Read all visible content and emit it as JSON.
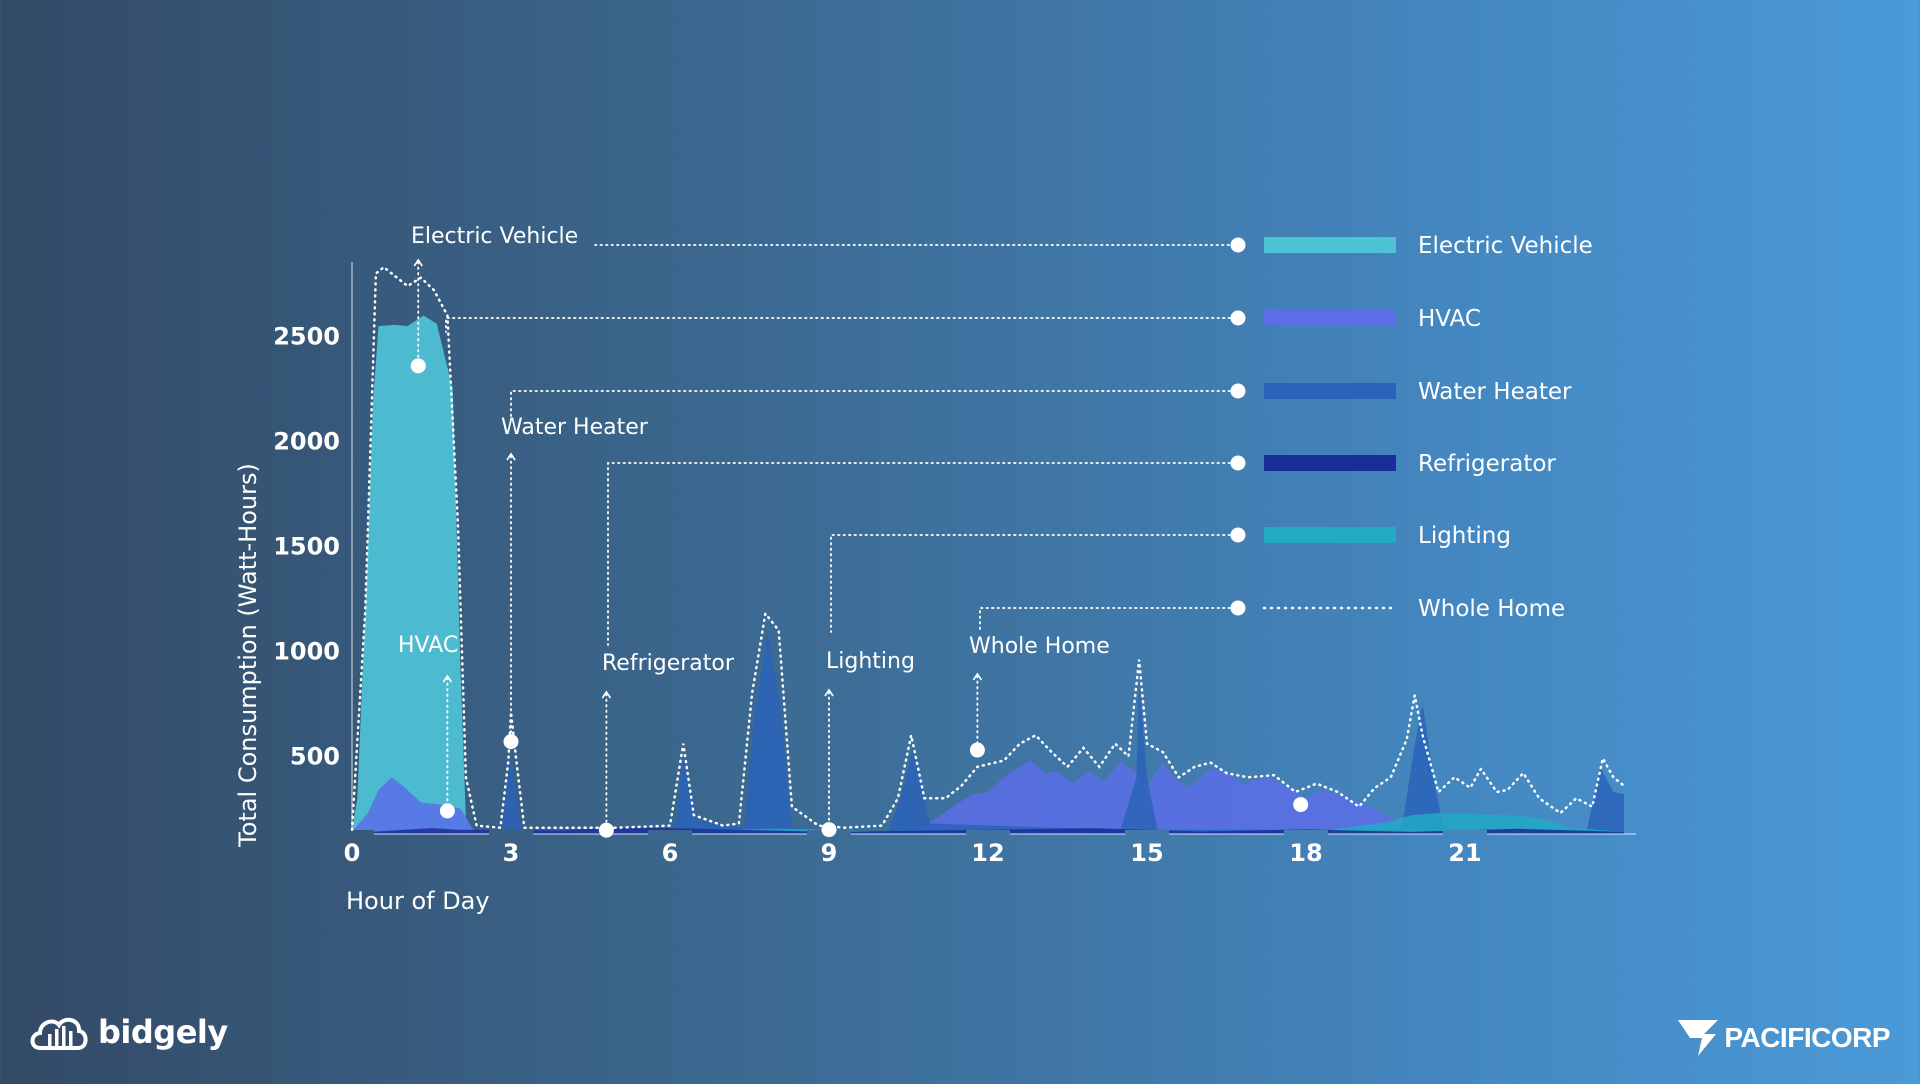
{
  "chart_data": {
    "type": "area",
    "xlabel": "Hour of Day",
    "ylabel": "Total Consumption (Watt-Hours)",
    "xlim": [
      0,
      24
    ],
    "ylim": [
      130,
      2850
    ],
    "x_ticks": [
      0,
      3,
      6,
      9,
      12,
      15,
      18,
      21
    ],
    "y_ticks": [
      500,
      1000,
      1500,
      2000,
      2500
    ],
    "grid": false,
    "legend_position": "right",
    "series": [
      {
        "name": "Electric Vehicle",
        "color": "#4fc3d6",
        "points": [
          [
            0,
            150
          ],
          [
            0.1,
            300
          ],
          [
            0.25,
            1200
          ],
          [
            0.4,
            2200
          ],
          [
            0.5,
            2550
          ],
          [
            0.8,
            2555
          ],
          [
            1.05,
            2550
          ],
          [
            1.35,
            2600
          ],
          [
            1.6,
            2560
          ],
          [
            1.9,
            2250
          ],
          [
            2.05,
            900
          ],
          [
            2.15,
            200
          ],
          [
            2.3,
            140
          ],
          [
            24,
            140
          ]
        ]
      },
      {
        "name": "HVAC",
        "color": "#5b6ee8",
        "points": [
          [
            0,
            140
          ],
          [
            0.3,
            230
          ],
          [
            0.5,
            340
          ],
          [
            0.75,
            400
          ],
          [
            1.0,
            350
          ],
          [
            1.3,
            280
          ],
          [
            1.7,
            270
          ],
          [
            2.05,
            250
          ],
          [
            2.3,
            150
          ],
          [
            10.6,
            140
          ],
          [
            11.0,
            200
          ],
          [
            11.4,
            270
          ],
          [
            11.7,
            320
          ],
          [
            12.0,
            330
          ],
          [
            12.4,
            420
          ],
          [
            12.8,
            480
          ],
          [
            13.1,
            420
          ],
          [
            13.3,
            430
          ],
          [
            13.6,
            370
          ],
          [
            13.9,
            430
          ],
          [
            14.2,
            380
          ],
          [
            14.5,
            480
          ],
          [
            14.8,
            420
          ],
          [
            15.0,
            360
          ],
          [
            15.3,
            470
          ],
          [
            15.5,
            400
          ],
          [
            15.8,
            350
          ],
          [
            16.2,
            440
          ],
          [
            16.5,
            430
          ],
          [
            16.8,
            370
          ],
          [
            17.3,
            400
          ],
          [
            17.8,
            330
          ],
          [
            18.0,
            300
          ],
          [
            18.3,
            340
          ],
          [
            18.8,
            300
          ],
          [
            19.2,
            260
          ],
          [
            19.5,
            220
          ],
          [
            19.8,
            180
          ],
          [
            20.3,
            150
          ],
          [
            24,
            140
          ]
        ]
      },
      {
        "name": "Water Heater",
        "color": "#2a63b8",
        "points": [
          [
            2.8,
            140
          ],
          [
            3.0,
            500
          ],
          [
            3.2,
            140
          ],
          [
            6.1,
            140
          ],
          [
            6.25,
            520
          ],
          [
            6.5,
            200
          ],
          [
            7.4,
            160
          ],
          [
            7.6,
            700
          ],
          [
            7.85,
            1100
          ],
          [
            8.1,
            700
          ],
          [
            8.3,
            160
          ],
          [
            10.1,
            140
          ],
          [
            10.35,
            300
          ],
          [
            10.6,
            560
          ],
          [
            10.9,
            180
          ],
          [
            14.5,
            150
          ],
          [
            14.8,
            400
          ],
          [
            14.85,
            850
          ],
          [
            15.0,
            400
          ],
          [
            15.2,
            150
          ],
          [
            19.8,
            150
          ],
          [
            20.05,
            550
          ],
          [
            20.2,
            750
          ],
          [
            20.4,
            400
          ],
          [
            20.6,
            150
          ],
          [
            23.3,
            150
          ],
          [
            23.55,
            450
          ],
          [
            23.8,
            330
          ],
          [
            24,
            320
          ]
        ]
      },
      {
        "name": "Refrigerator",
        "color": "#1a2e9a",
        "points": [
          [
            0,
            135
          ],
          [
            1.5,
            158
          ],
          [
            2,
            150
          ],
          [
            4,
            148
          ],
          [
            5,
            160
          ],
          [
            6,
            158
          ],
          [
            9,
            140
          ],
          [
            12,
            150
          ],
          [
            14,
            158
          ],
          [
            16,
            142
          ],
          [
            18,
            152
          ],
          [
            20,
            140
          ],
          [
            22,
            155
          ],
          [
            24,
            140
          ]
        ]
      },
      {
        "name": "Lighting",
        "color": "#22a9c4",
        "points": [
          [
            4.5,
            130
          ],
          [
            6,
            143
          ],
          [
            8,
            155
          ],
          [
            9,
            152
          ],
          [
            10,
            140
          ],
          [
            18,
            135
          ],
          [
            19.5,
            185
          ],
          [
            20,
            220
          ],
          [
            20.5,
            230
          ],
          [
            21,
            228
          ],
          [
            21.5,
            222
          ],
          [
            22,
            218
          ],
          [
            22.5,
            200
          ],
          [
            23,
            160
          ],
          [
            24,
            140
          ]
        ]
      },
      {
        "name": "Whole Home",
        "style": "dotted",
        "points": [
          [
            0,
            150
          ],
          [
            0.25,
            1200
          ],
          [
            0.45,
            2800
          ],
          [
            0.6,
            2830
          ],
          [
            0.85,
            2780
          ],
          [
            1.05,
            2740
          ],
          [
            1.3,
            2780
          ],
          [
            1.55,
            2720
          ],
          [
            1.8,
            2600
          ],
          [
            2.0,
            1600
          ],
          [
            2.15,
            400
          ],
          [
            2.35,
            170
          ],
          [
            2.8,
            160
          ],
          [
            2.95,
            480
          ],
          [
            3.0,
            710
          ],
          [
            3.1,
            480
          ],
          [
            3.25,
            160
          ],
          [
            5.0,
            160
          ],
          [
            6.0,
            170
          ],
          [
            6.25,
            560
          ],
          [
            6.45,
            220
          ],
          [
            7.0,
            170
          ],
          [
            7.3,
            180
          ],
          [
            7.55,
            800
          ],
          [
            7.8,
            1180
          ],
          [
            8.05,
            1100
          ],
          [
            8.3,
            260
          ],
          [
            8.8,
            170
          ],
          [
            9.3,
            160
          ],
          [
            10.0,
            170
          ],
          [
            10.3,
            300
          ],
          [
            10.55,
            600
          ],
          [
            10.8,
            300
          ],
          [
            11.2,
            300
          ],
          [
            11.5,
            360
          ],
          [
            11.8,
            450
          ],
          [
            12.3,
            480
          ],
          [
            12.6,
            560
          ],
          [
            12.9,
            600
          ],
          [
            13.2,
            520
          ],
          [
            13.5,
            450
          ],
          [
            13.8,
            540
          ],
          [
            14.1,
            450
          ],
          [
            14.4,
            560
          ],
          [
            14.65,
            500
          ],
          [
            14.85,
            960
          ],
          [
            15.0,
            560
          ],
          [
            15.3,
            520
          ],
          [
            15.6,
            400
          ],
          [
            15.9,
            450
          ],
          [
            16.2,
            470
          ],
          [
            16.5,
            420
          ],
          [
            16.9,
            400
          ],
          [
            17.4,
            410
          ],
          [
            17.8,
            330
          ],
          [
            18.2,
            370
          ],
          [
            18.6,
            330
          ],
          [
            19.0,
            260
          ],
          [
            19.3,
            350
          ],
          [
            19.6,
            400
          ],
          [
            19.9,
            580
          ],
          [
            20.05,
            790
          ],
          [
            20.2,
            600
          ],
          [
            20.5,
            330
          ],
          [
            20.8,
            400
          ],
          [
            21.1,
            350
          ],
          [
            21.3,
            440
          ],
          [
            21.6,
            330
          ],
          [
            21.8,
            340
          ],
          [
            22.1,
            420
          ],
          [
            22.4,
            300
          ],
          [
            22.8,
            230
          ],
          [
            23.1,
            300
          ],
          [
            23.4,
            260
          ],
          [
            23.6,
            490
          ],
          [
            23.8,
            400
          ],
          [
            24,
            360
          ]
        ]
      }
    ],
    "legend": [
      "Electric Vehicle",
      "HVAC",
      "Water Heater",
      "Refrigerator",
      "Lighting",
      "Whole Home"
    ],
    "annotations": [
      {
        "label": "Electric Vehicle",
        "target": [
          1.25,
          2360
        ]
      },
      {
        "label": "HVAC",
        "target": [
          1.8,
          240
        ]
      },
      {
        "label": "Water Heater",
        "target": [
          3.0,
          570
        ]
      },
      {
        "label": "Refrigerator",
        "target": [
          4.8,
          148
        ]
      },
      {
        "label": "Lighting",
        "target": [
          9.0,
          151
        ]
      },
      {
        "label": "Whole Home",
        "target": [
          11.8,
          530
        ]
      }
    ],
    "extra_markers": [
      [
        17.9,
        270
      ]
    ]
  },
  "branding": {
    "left_logo_text": "bidgely",
    "right_logo_text": "PACIFICORP"
  }
}
